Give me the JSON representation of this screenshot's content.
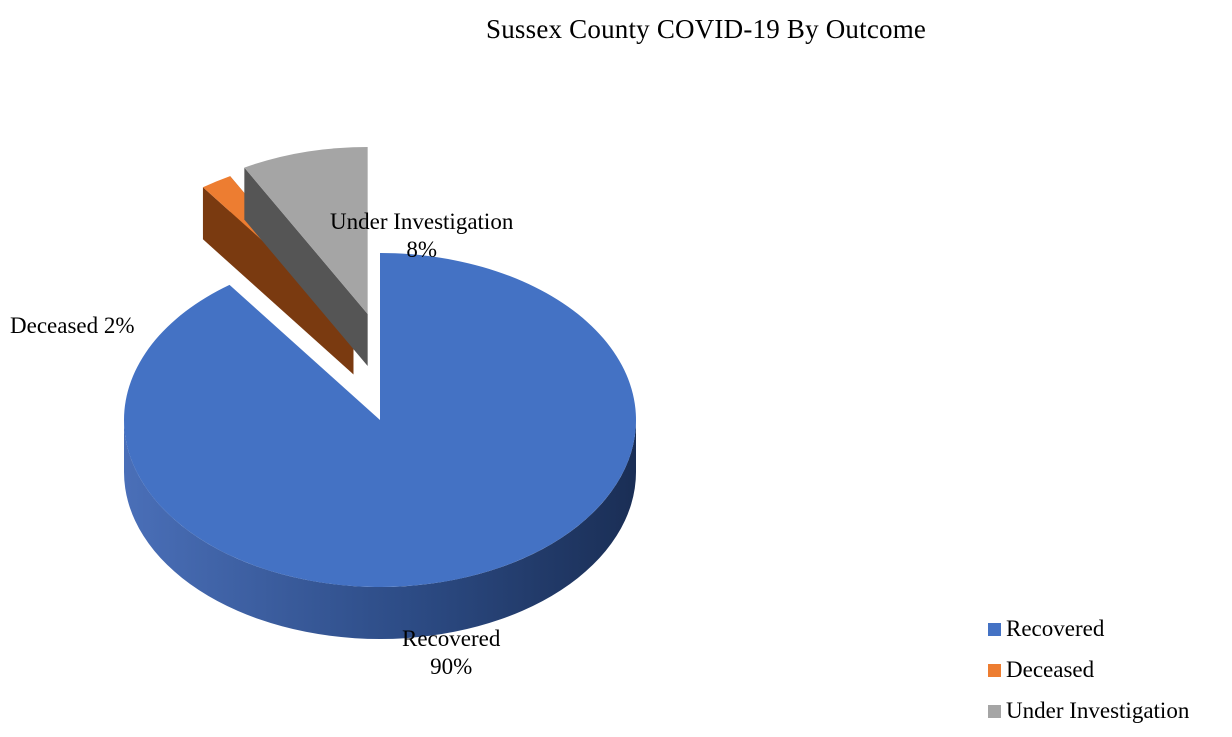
{
  "chart_data": {
    "type": "pie",
    "title": "Sussex County COVID-19 By Outcome",
    "categories": [
      "Recovered",
      "Deceased",
      "Under Investigation"
    ],
    "values": [
      90,
      2,
      8
    ],
    "slice_labels": [
      {
        "name": "Recovered",
        "percent": "90%"
      },
      {
        "name": "Deceased",
        "percent": "2%"
      },
      {
        "name": "Under Investigation",
        "percent": "8%"
      }
    ],
    "colors": [
      "#4472C4",
      "#ED7D31",
      "#A5A5A5"
    ],
    "side_colors": [
      "#2A4A86",
      "#7A3A10",
      "#555555"
    ],
    "legend": {
      "placement": "bottom-right",
      "items": [
        "Recovered",
        "Deceased",
        "Under Investigation"
      ]
    },
    "style": "3d-exploded"
  }
}
